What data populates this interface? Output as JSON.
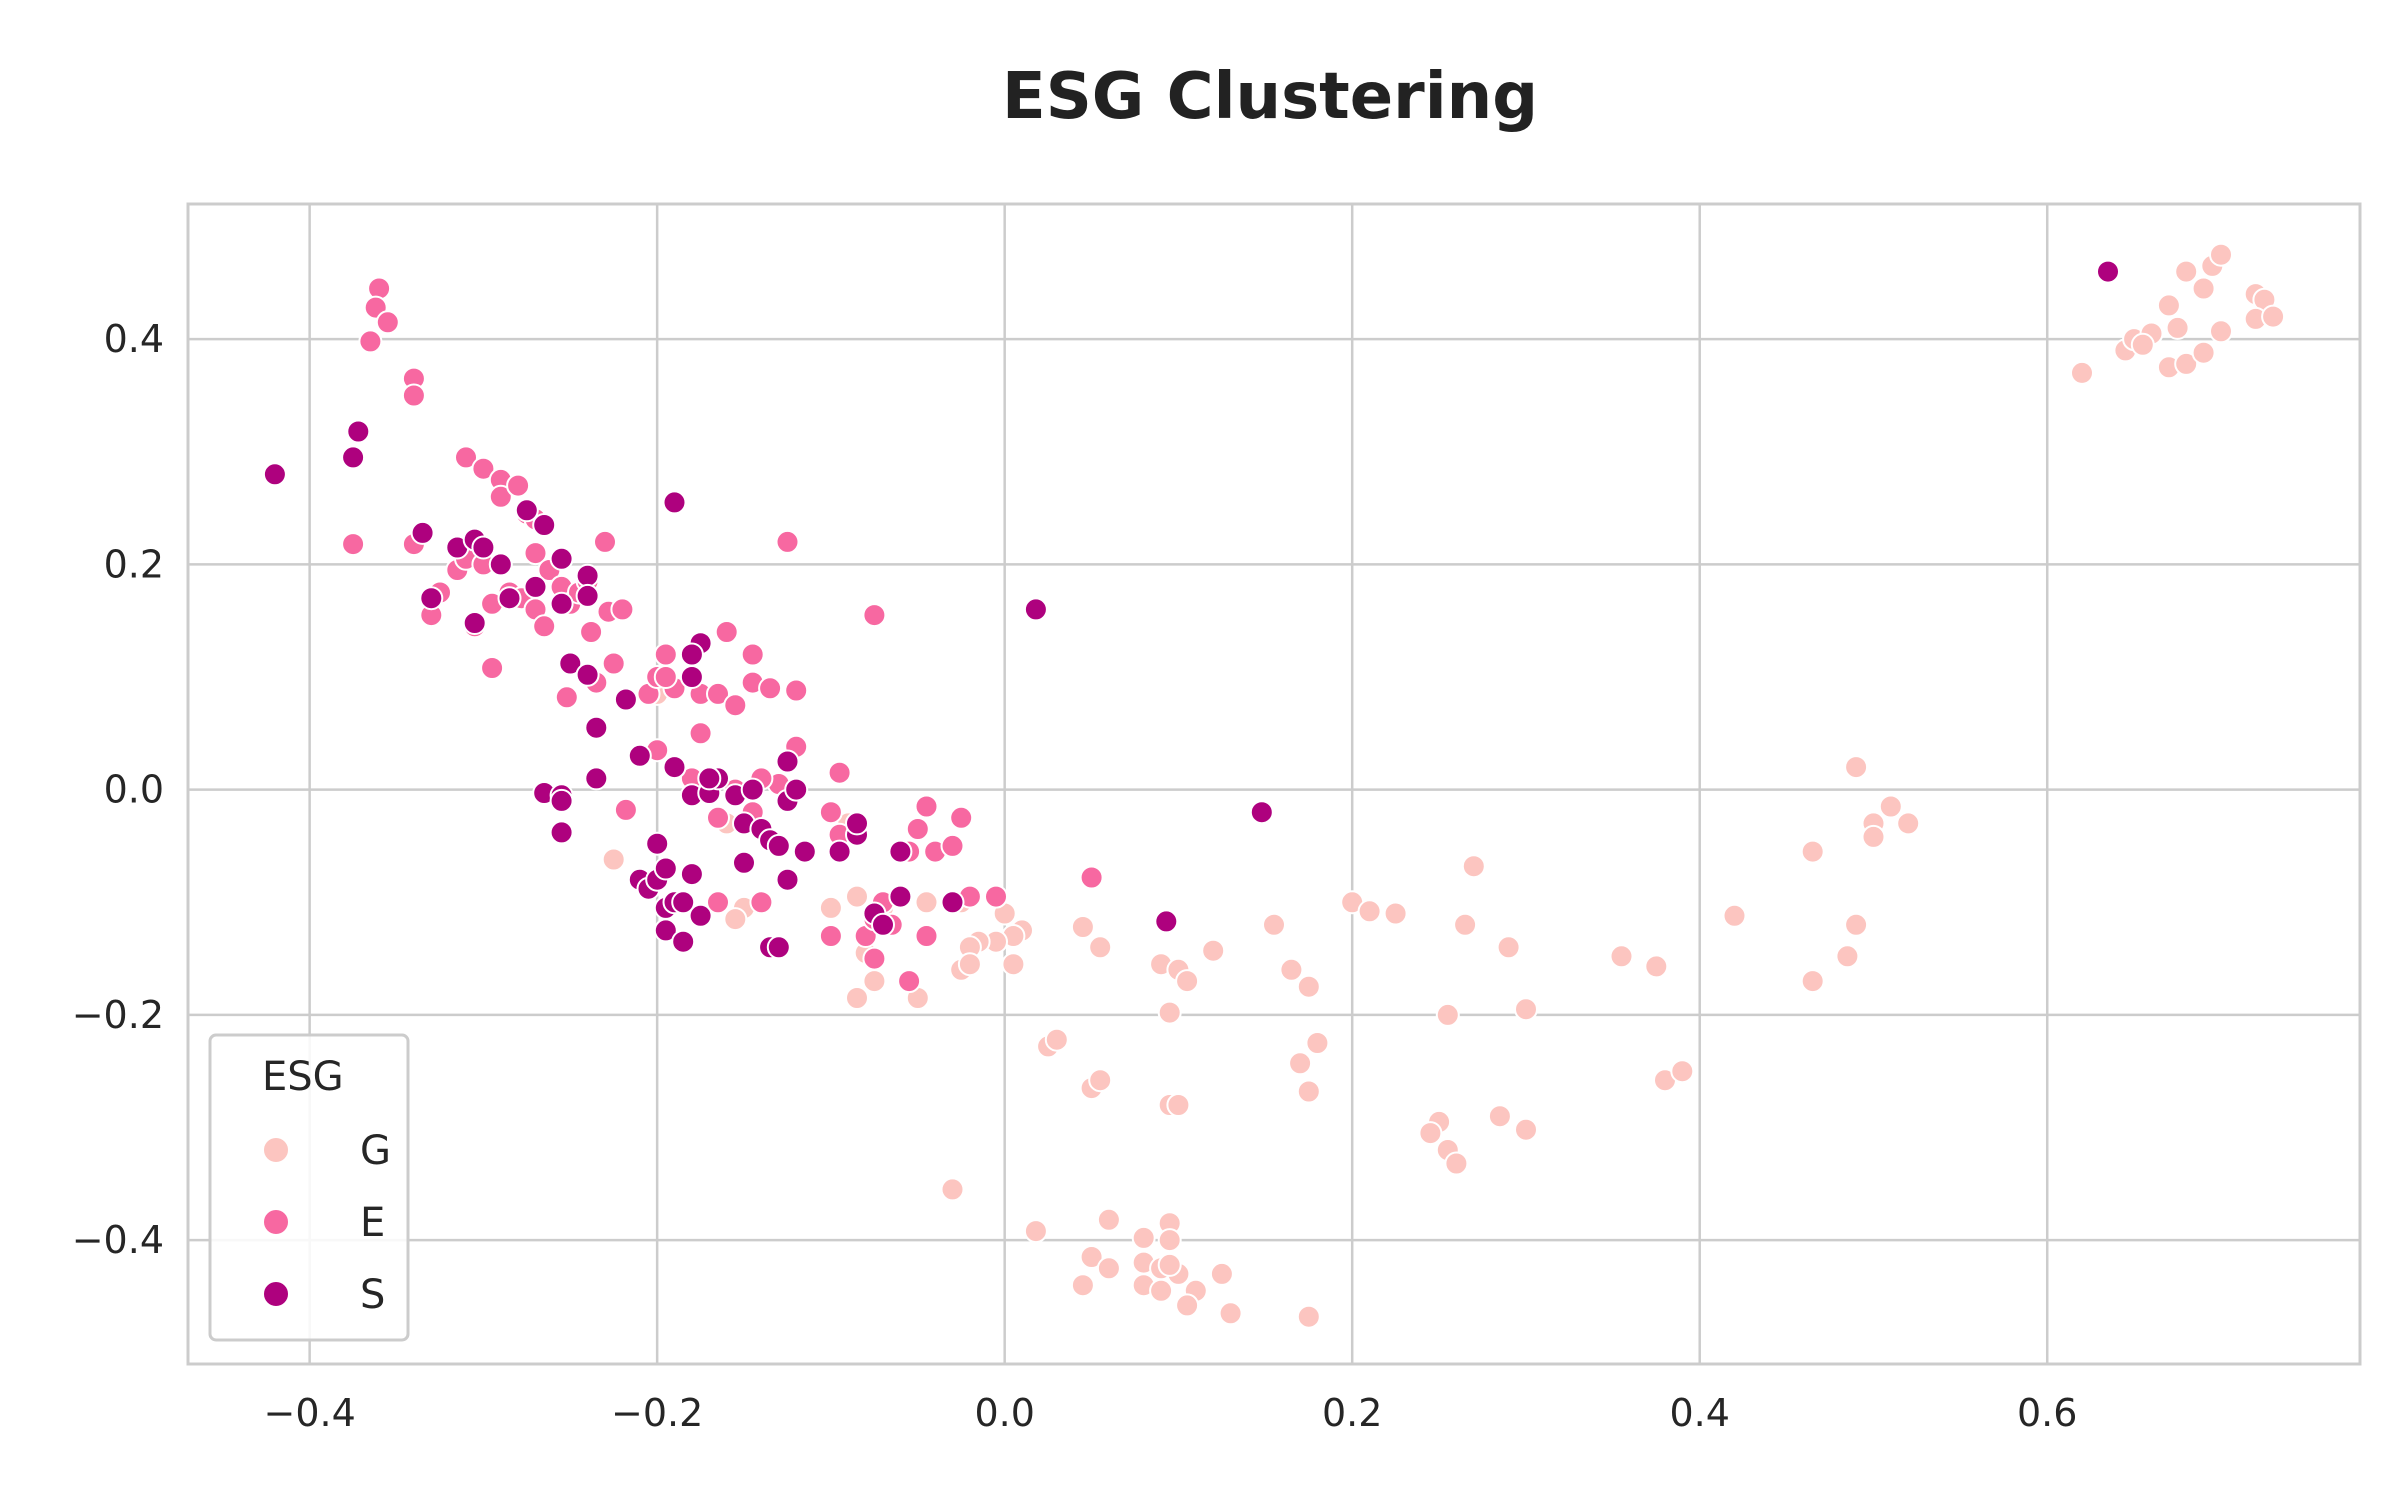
{
  "chart_data": {
    "type": "scatter",
    "title": "ESG Clustering",
    "xlabel": "",
    "ylabel": "",
    "xlim": [
      -0.47,
      0.78
    ],
    "ylim": [
      -0.51,
      0.52
    ],
    "x_ticks": [
      -0.4,
      -0.2,
      0.0,
      0.2,
      0.4,
      0.6
    ],
    "x_tick_labels": [
      "−0.4",
      "−0.2",
      "0.0",
      "0.2",
      "0.4",
      "0.6"
    ],
    "y_ticks": [
      0.4,
      0.2,
      0.0,
      -0.2,
      -0.4
    ],
    "y_tick_labels": [
      "0.4",
      "0.2",
      "0.0",
      "−0.2",
      "−0.4"
    ],
    "grid": true,
    "legend": {
      "title": "ESG",
      "placement": "bottom-left"
    },
    "series": [
      {
        "name": "G",
        "color": "#fcc5c0",
        "points": [
          [
            0.62,
            0.37
          ],
          [
            0.645,
            0.39
          ],
          [
            0.65,
            0.4
          ],
          [
            0.66,
            0.405
          ],
          [
            0.67,
            0.43
          ],
          [
            0.68,
            0.46
          ],
          [
            0.69,
            0.445
          ],
          [
            0.695,
            0.465
          ],
          [
            0.7,
            0.475
          ],
          [
            0.67,
            0.375
          ],
          [
            0.68,
            0.378
          ],
          [
            0.69,
            0.388
          ],
          [
            0.675,
            0.41
          ],
          [
            0.7,
            0.407
          ],
          [
            0.72,
            0.44
          ],
          [
            0.725,
            0.435
          ],
          [
            0.72,
            0.418
          ],
          [
            0.73,
            0.42
          ],
          [
            0.655,
            0.395
          ],
          [
            0.49,
            0.02
          ],
          [
            0.5,
            -0.03
          ],
          [
            0.51,
            -0.015
          ],
          [
            0.52,
            -0.03
          ],
          [
            0.5,
            -0.042
          ],
          [
            0.465,
            -0.055
          ],
          [
            0.42,
            -0.112
          ],
          [
            0.49,
            -0.12
          ],
          [
            0.485,
            -0.148
          ],
          [
            0.465,
            -0.17
          ],
          [
            0.2,
            -0.1
          ],
          [
            0.21,
            -0.108
          ],
          [
            0.225,
            -0.11
          ],
          [
            0.27,
            -0.068
          ],
          [
            0.265,
            -0.12
          ],
          [
            0.29,
            -0.14
          ],
          [
            0.255,
            -0.2
          ],
          [
            0.3,
            -0.195
          ],
          [
            0.355,
            -0.148
          ],
          [
            0.375,
            -0.157
          ],
          [
            0.38,
            -0.258
          ],
          [
            0.39,
            -0.25
          ],
          [
            0.25,
            -0.295
          ],
          [
            0.245,
            -0.305
          ],
          [
            0.255,
            -0.32
          ],
          [
            0.26,
            -0.332
          ],
          [
            0.285,
            -0.29
          ],
          [
            0.3,
            -0.302
          ],
          [
            0.155,
            -0.12
          ],
          [
            0.165,
            -0.16
          ],
          [
            0.175,
            -0.175
          ],
          [
            0.17,
            -0.243
          ],
          [
            0.18,
            -0.225
          ],
          [
            0.175,
            -0.268
          ],
          [
            0.175,
            -0.468
          ],
          [
            0.12,
            -0.143
          ],
          [
            0.09,
            -0.155
          ],
          [
            0.1,
            -0.16
          ],
          [
            0.105,
            -0.17
          ],
          [
            0.095,
            -0.198
          ],
          [
            0.095,
            -0.28
          ],
          [
            0.1,
            -0.28
          ],
          [
            0.045,
            -0.122
          ],
          [
            0.055,
            -0.14
          ],
          [
            0.05,
            -0.265
          ],
          [
            0.055,
            -0.258
          ],
          [
            0.025,
            -0.228
          ],
          [
            0.03,
            -0.222
          ],
          [
            0.018,
            -0.392
          ],
          [
            0.06,
            -0.382
          ],
          [
            0.05,
            -0.415
          ],
          [
            0.045,
            -0.44
          ],
          [
            0.06,
            -0.425
          ],
          [
            0.08,
            -0.398
          ],
          [
            0.095,
            -0.385
          ],
          [
            0.095,
            -0.4
          ],
          [
            0.08,
            -0.42
          ],
          [
            0.09,
            -0.425
          ],
          [
            0.1,
            -0.43
          ],
          [
            0.095,
            -0.422
          ],
          [
            0.08,
            -0.44
          ],
          [
            0.09,
            -0.445
          ],
          [
            0.11,
            -0.445
          ],
          [
            0.105,
            -0.458
          ],
          [
            0.125,
            -0.43
          ],
          [
            0.13,
            -0.465
          ],
          [
            -0.03,
            -0.355
          ],
          [
            0.0,
            -0.11
          ],
          [
            0.01,
            -0.125
          ],
          [
            0.005,
            -0.13
          ],
          [
            -0.005,
            -0.135
          ],
          [
            -0.015,
            -0.135
          ],
          [
            -0.02,
            -0.14
          ],
          [
            -0.025,
            -0.16
          ],
          [
            0.005,
            -0.155
          ],
          [
            -0.02,
            -0.155
          ],
          [
            -0.025,
            -0.1
          ],
          [
            -0.045,
            -0.1
          ],
          [
            -0.05,
            -0.185
          ],
          [
            -0.07,
            -0.105
          ],
          [
            -0.08,
            -0.145
          ],
          [
            -0.075,
            -0.17
          ],
          [
            -0.085,
            -0.185
          ],
          [
            -0.085,
            -0.095
          ],
          [
            -0.1,
            -0.105
          ],
          [
            -0.09,
            -0.03
          ],
          [
            -0.15,
            -0.105
          ],
          [
            -0.155,
            -0.115
          ],
          [
            -0.16,
            -0.03
          ],
          [
            -0.225,
            -0.062
          ],
          [
            -0.2,
            0.085
          ]
        ]
      },
      {
        "name": "E",
        "color": "#f768a1",
        "points": [
          [
            -0.36,
            0.445
          ],
          [
            -0.362,
            0.428
          ],
          [
            -0.355,
            0.415
          ],
          [
            -0.365,
            0.398
          ],
          [
            -0.34,
            0.365
          ],
          [
            -0.34,
            0.35
          ],
          [
            -0.375,
            0.218
          ],
          [
            -0.34,
            0.218
          ],
          [
            -0.33,
            0.155
          ],
          [
            -0.325,
            0.175
          ],
          [
            -0.315,
            0.195
          ],
          [
            -0.31,
            0.205
          ],
          [
            -0.31,
            0.295
          ],
          [
            -0.3,
            0.285
          ],
          [
            -0.29,
            0.275
          ],
          [
            -0.29,
            0.26
          ],
          [
            -0.28,
            0.27
          ],
          [
            -0.275,
            0.245
          ],
          [
            -0.27,
            0.24
          ],
          [
            -0.3,
            0.2
          ],
          [
            -0.305,
            0.145
          ],
          [
            -0.295,
            0.165
          ],
          [
            -0.295,
            0.108
          ],
          [
            -0.285,
            0.175
          ],
          [
            -0.278,
            0.17
          ],
          [
            -0.27,
            0.21
          ],
          [
            -0.262,
            0.195
          ],
          [
            -0.27,
            0.16
          ],
          [
            -0.265,
            0.145
          ],
          [
            -0.255,
            0.18
          ],
          [
            -0.25,
            0.165
          ],
          [
            -0.245,
            0.175
          ],
          [
            -0.24,
            0.185
          ],
          [
            -0.238,
            0.14
          ],
          [
            -0.23,
            0.22
          ],
          [
            -0.228,
            0.158
          ],
          [
            -0.225,
            0.112
          ],
          [
            -0.22,
            0.16
          ],
          [
            -0.235,
            0.095
          ],
          [
            -0.252,
            0.082
          ],
          [
            -0.218,
            -0.018
          ],
          [
            -0.205,
            0.085
          ],
          [
            -0.2,
            0.1
          ],
          [
            -0.195,
            0.12
          ],
          [
            -0.19,
            0.09
          ],
          [
            -0.18,
            0.1
          ],
          [
            -0.175,
            0.085
          ],
          [
            -0.165,
            0.085
          ],
          [
            -0.16,
            0.14
          ],
          [
            -0.155,
            0.075
          ],
          [
            -0.145,
            0.12
          ],
          [
            -0.145,
            0.095
          ],
          [
            -0.135,
            0.09
          ],
          [
            -0.12,
            0.088
          ],
          [
            -0.125,
            0.22
          ],
          [
            -0.12,
            0.038
          ],
          [
            -0.13,
            0.005
          ],
          [
            -0.14,
            0.01
          ],
          [
            -0.155,
            0.0
          ],
          [
            -0.145,
            -0.02
          ],
          [
            -0.165,
            -0.025
          ],
          [
            -0.18,
            0.01
          ],
          [
            -0.19,
            0.02
          ],
          [
            -0.2,
            0.035
          ],
          [
            -0.195,
            0.1
          ],
          [
            -0.175,
            0.05
          ],
          [
            -0.14,
            -0.1
          ],
          [
            -0.165,
            -0.1
          ],
          [
            -0.095,
            0.015
          ],
          [
            -0.1,
            -0.02
          ],
          [
            -0.095,
            -0.04
          ],
          [
            -0.1,
            -0.13
          ],
          [
            -0.08,
            -0.13
          ],
          [
            -0.075,
            -0.115
          ],
          [
            -0.075,
            -0.15
          ],
          [
            -0.075,
            0.155
          ],
          [
            -0.07,
            -0.1
          ],
          [
            -0.065,
            -0.12
          ],
          [
            -0.055,
            -0.055
          ],
          [
            -0.055,
            -0.17
          ],
          [
            -0.05,
            -0.035
          ],
          [
            -0.045,
            -0.015
          ],
          [
            -0.045,
            -0.13
          ],
          [
            -0.04,
            -0.055
          ],
          [
            -0.03,
            -0.05
          ],
          [
            -0.025,
            -0.025
          ],
          [
            -0.02,
            -0.095
          ],
          [
            -0.005,
            -0.095
          ],
          [
            0.05,
            -0.078
          ]
        ]
      },
      {
        "name": "S",
        "color": "#ae017e",
        "points": [
          [
            0.635,
            0.46
          ],
          [
            -0.42,
            0.28
          ],
          [
            -0.372,
            0.318
          ],
          [
            -0.375,
            0.295
          ],
          [
            -0.335,
            0.228
          ],
          [
            -0.33,
            0.17
          ],
          [
            -0.315,
            0.215
          ],
          [
            -0.305,
            0.222
          ],
          [
            -0.3,
            0.215
          ],
          [
            -0.305,
            0.148
          ],
          [
            -0.29,
            0.2
          ],
          [
            -0.285,
            0.17
          ],
          [
            -0.275,
            0.248
          ],
          [
            -0.265,
            0.235
          ],
          [
            -0.27,
            0.18
          ],
          [
            -0.255,
            0.205
          ],
          [
            -0.255,
            0.165
          ],
          [
            -0.24,
            0.19
          ],
          [
            -0.24,
            0.172
          ],
          [
            -0.25,
            0.112
          ],
          [
            -0.24,
            0.102
          ],
          [
            -0.235,
            0.055
          ],
          [
            -0.235,
            0.01
          ],
          [
            -0.218,
            0.08
          ],
          [
            -0.19,
            0.255
          ],
          [
            -0.265,
            -0.003
          ],
          [
            -0.255,
            -0.005
          ],
          [
            -0.255,
            -0.01
          ],
          [
            -0.255,
            -0.038
          ],
          [
            -0.21,
            0.03
          ],
          [
            -0.2,
            -0.048
          ],
          [
            -0.21,
            -0.08
          ],
          [
            -0.205,
            -0.088
          ],
          [
            -0.2,
            -0.08
          ],
          [
            -0.195,
            -0.07
          ],
          [
            -0.195,
            -0.105
          ],
          [
            -0.19,
            -0.1
          ],
          [
            -0.195,
            -0.125
          ],
          [
            -0.185,
            -0.135
          ],
          [
            -0.185,
            -0.1
          ],
          [
            -0.175,
            -0.112
          ],
          [
            -0.18,
            -0.075
          ],
          [
            -0.18,
            -0.005
          ],
          [
            -0.17,
            -0.003
          ],
          [
            -0.165,
            0.01
          ],
          [
            -0.175,
            0.13
          ],
          [
            -0.18,
            0.12
          ],
          [
            -0.18,
            0.1
          ],
          [
            -0.19,
            0.02
          ],
          [
            -0.17,
            0.01
          ],
          [
            -0.155,
            -0.005
          ],
          [
            -0.15,
            -0.03
          ],
          [
            -0.15,
            -0.065
          ],
          [
            -0.145,
            0.0
          ],
          [
            -0.14,
            -0.035
          ],
          [
            -0.135,
            -0.045
          ],
          [
            -0.13,
            -0.05
          ],
          [
            -0.125,
            0.025
          ],
          [
            -0.125,
            -0.01
          ],
          [
            -0.12,
            0.0
          ],
          [
            -0.115,
            -0.055
          ],
          [
            -0.125,
            -0.08
          ],
          [
            -0.135,
            -0.14
          ],
          [
            -0.13,
            -0.14
          ],
          [
            -0.095,
            -0.055
          ],
          [
            -0.085,
            -0.04
          ],
          [
            -0.085,
            -0.03
          ],
          [
            -0.075,
            -0.11
          ],
          [
            -0.06,
            -0.095
          ],
          [
            -0.06,
            -0.055
          ],
          [
            -0.03,
            -0.1
          ],
          [
            -0.07,
            -0.12
          ],
          [
            0.018,
            0.16
          ],
          [
            0.148,
            -0.02
          ],
          [
            0.093,
            -0.117
          ]
        ]
      }
    ]
  }
}
